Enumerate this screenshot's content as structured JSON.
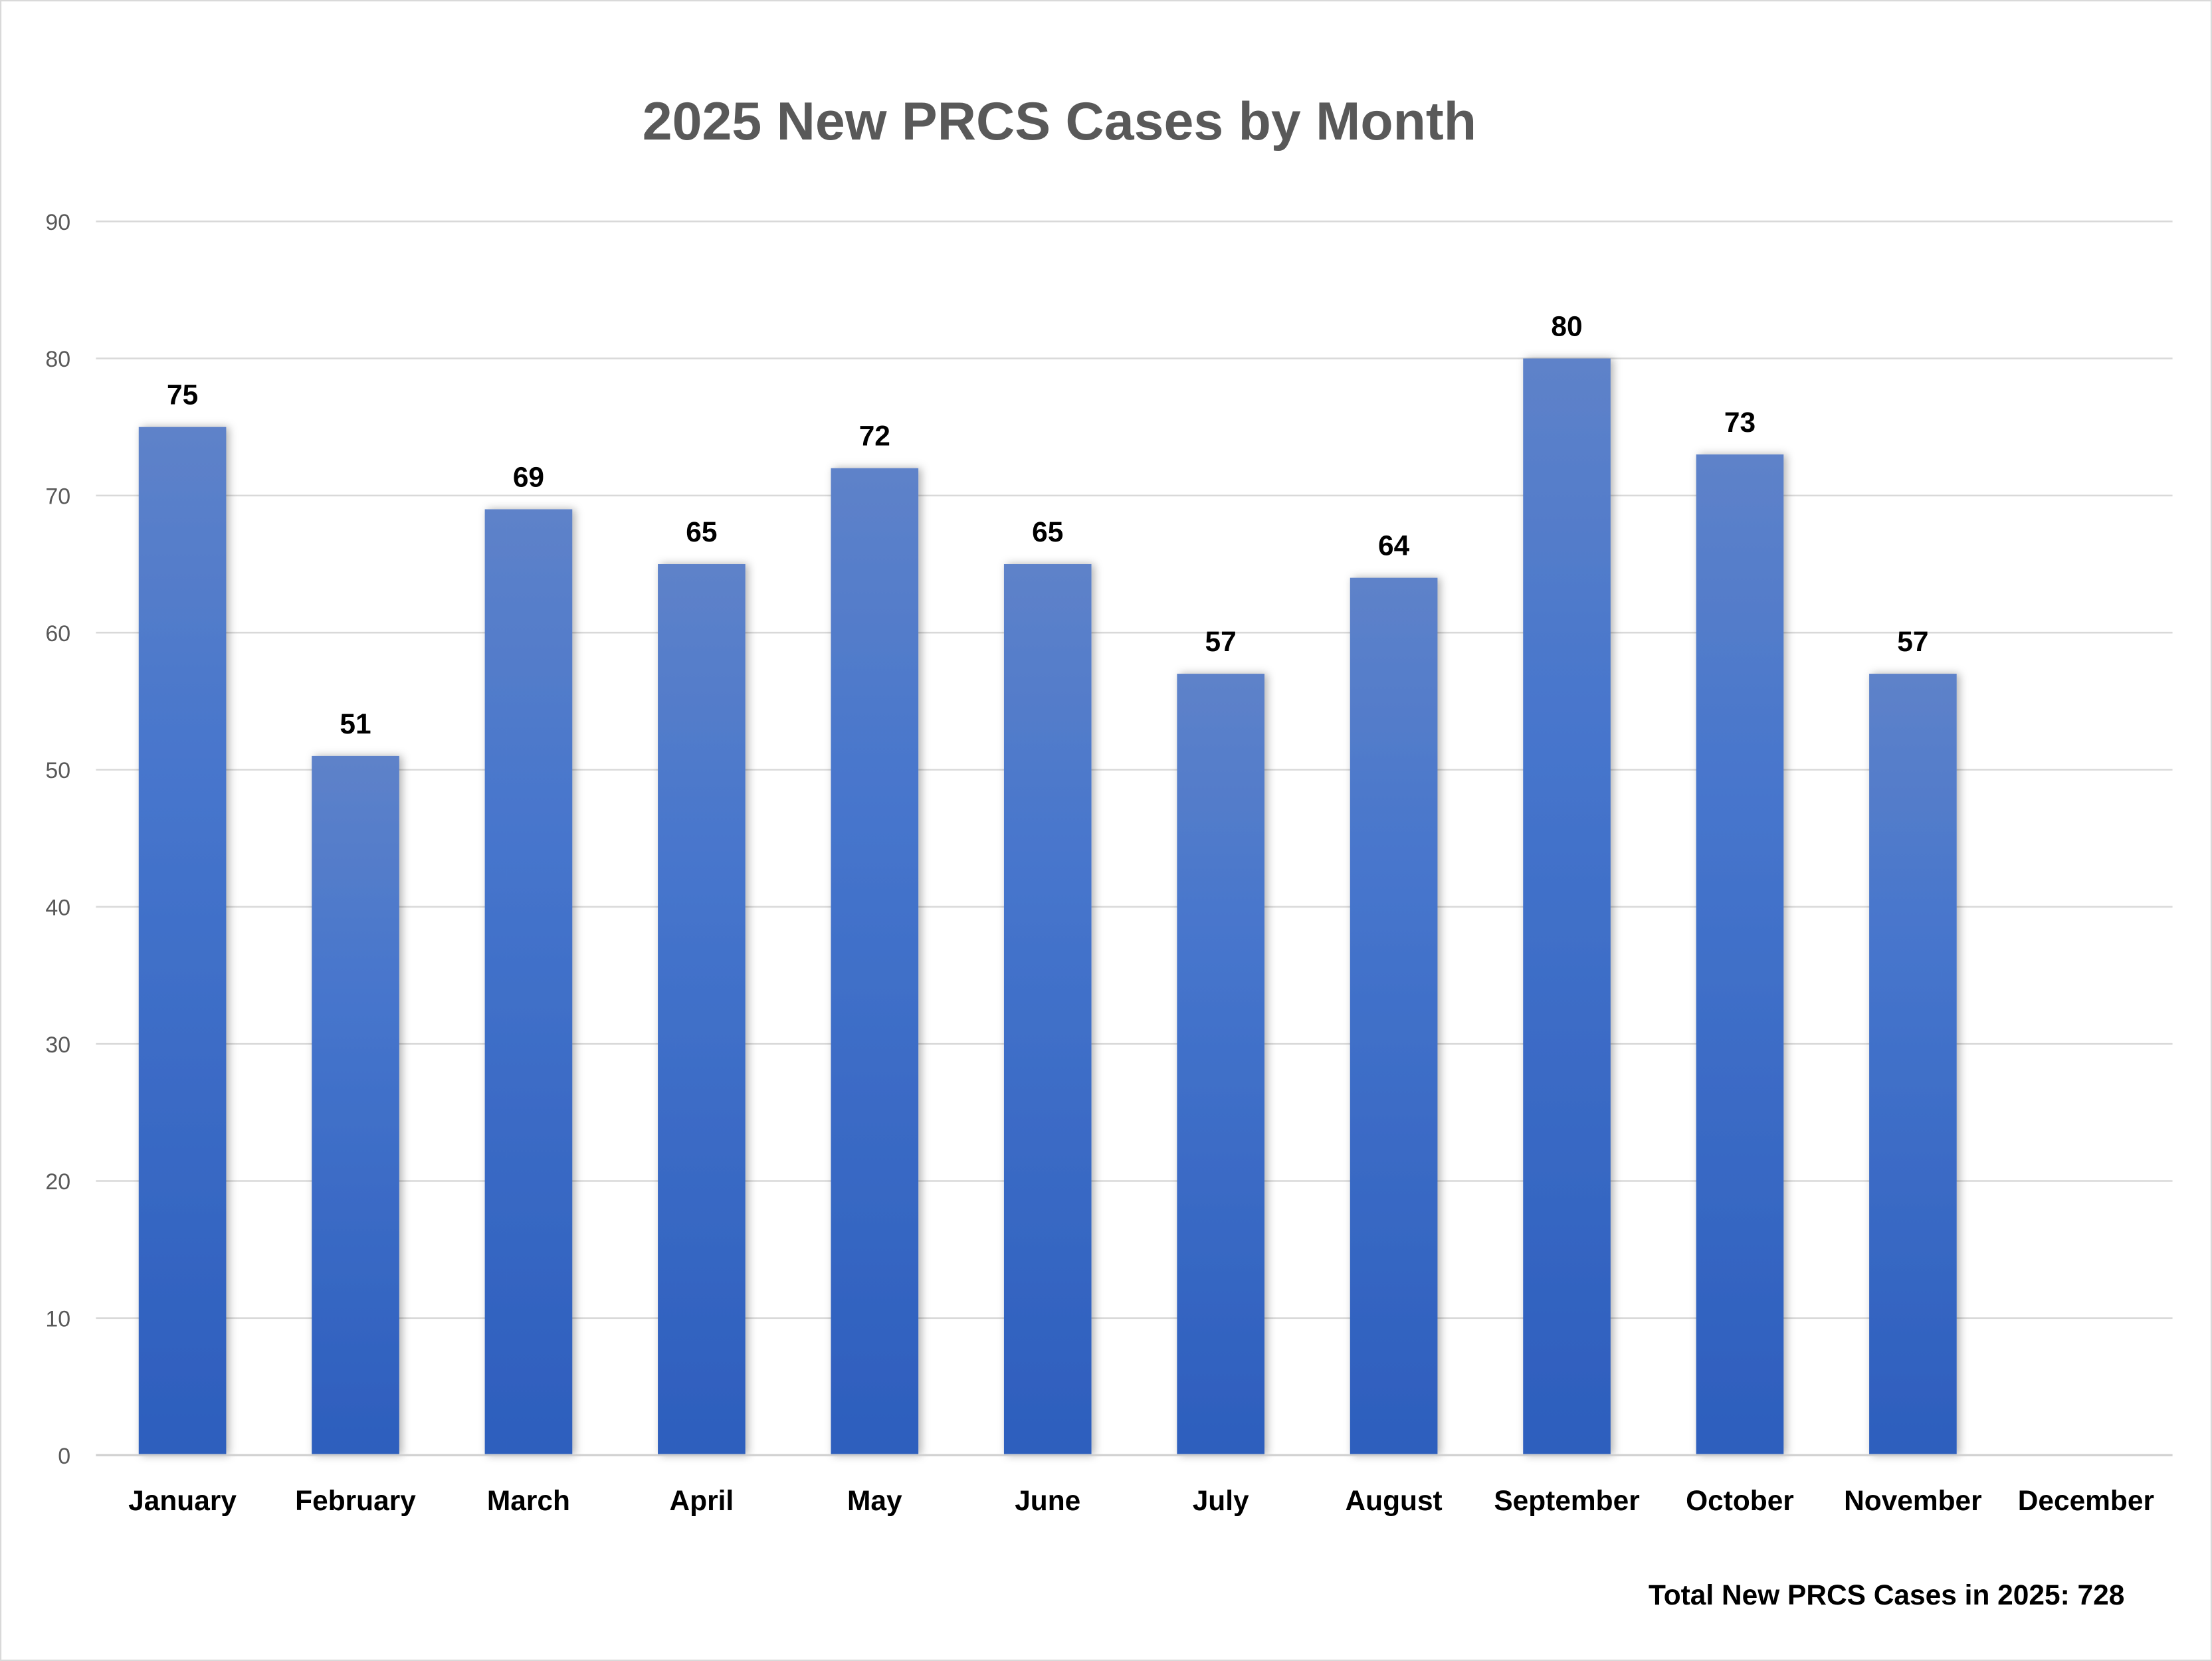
{
  "chart_data": {
    "type": "bar",
    "title": "2025 New PRCS Cases by Month",
    "categories": [
      "January",
      "February",
      "March",
      "April",
      "May",
      "June",
      "July",
      "August",
      "September",
      "October",
      "November",
      "December"
    ],
    "values": [
      75,
      51,
      69,
      65,
      72,
      65,
      57,
      64,
      80,
      73,
      57,
      null
    ],
    "data_labels": [
      "75",
      "51",
      "69",
      "65",
      "72",
      "65",
      "57",
      "64",
      "80",
      "73",
      "57",
      ""
    ],
    "ylim": [
      0,
      90
    ],
    "yticks": [
      "0",
      "10",
      "20",
      "30",
      "40",
      "50",
      "60",
      "70",
      "80",
      "90"
    ],
    "grid": true,
    "legend": "none",
    "xlabel": "",
    "ylabel": "",
    "annotation": "Total New PRCS Cases in 2025: 728",
    "colors": {
      "bar_top": "#5e82c9",
      "bar_bottom": "#2d5ebd",
      "title": "#595959",
      "grid": "#d9d9d9",
      "tick_label": "#595959"
    }
  }
}
